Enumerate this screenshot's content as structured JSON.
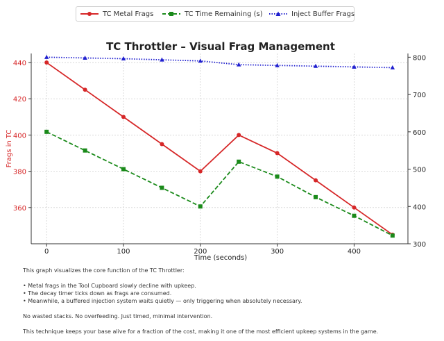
{
  "chart_data": {
    "type": "line",
    "title": "TC Throttler – Visual Frag Management",
    "xlabel": "Time (seconds)",
    "ylabel_left": "Frags in TC",
    "ylabel_right": "",
    "x": [
      0,
      50,
      100,
      150,
      200,
      250,
      300,
      350,
      400,
      450
    ],
    "xticks": [
      0,
      100,
      200,
      300,
      400
    ],
    "xlim": [
      -20,
      470
    ],
    "ylim_left": [
      340,
      445
    ],
    "yticks_left": [
      360,
      380,
      400,
      420,
      440
    ],
    "ylim_right": [
      300,
      810
    ],
    "yticks_right": [
      300,
      400,
      500,
      600,
      700,
      800
    ],
    "grid": true,
    "legend_position": "top-center",
    "series": [
      {
        "name": "TC Metal Frags",
        "axis": "left",
        "color": "#d62728",
        "style": "solid",
        "marker": "circle",
        "values": [
          440,
          425,
          410,
          395,
          380,
          400,
          390,
          375,
          360,
          345
        ]
      },
      {
        "name": "TC Time Remaining (s)",
        "axis": "right",
        "color": "#1a8a1a",
        "style": "dashed",
        "marker": "square",
        "values": [
          600,
          550,
          500,
          450,
          400,
          520,
          480,
          425,
          375,
          322
        ]
      },
      {
        "name": "Inject Buffer Frags",
        "axis": "right",
        "color": "#1f1fcf",
        "style": "dotted",
        "marker": "triangle",
        "values": [
          800,
          798,
          796,
          793,
          790,
          780,
          778,
          776,
          774,
          772
        ]
      }
    ]
  },
  "description": {
    "intro": "This graph visualizes the core function of the TC Throttler:",
    "bullets": [
      "Metal frags in the Tool Cupboard slowly decline with upkeep.",
      "The decay timer ticks down as frags are consumed.",
      "Meanwhile, a buffered injection system waits quietly — only triggering when absolutely necessary."
    ],
    "line2": "No wasted stacks. No overfeeding. Just timed, minimal intervention.",
    "line3": "This technique keeps your base alive for a fraction of the cost, making it one of the most efficient upkeep systems in the game."
  }
}
